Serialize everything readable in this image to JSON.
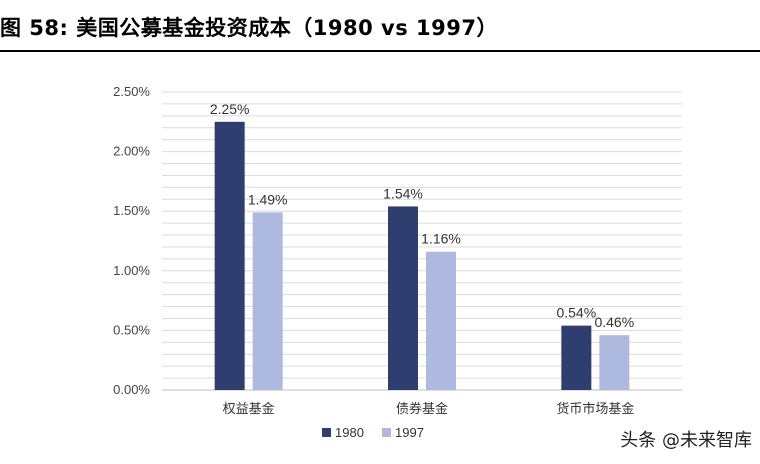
{
  "figure": {
    "title": "图 58:  美国公募基金投资成本（1980 vs 1997）"
  },
  "watermark": "头条 @未来智库",
  "chart_data": {
    "type": "bar",
    "categories": [
      "权益基金",
      "债券基金",
      "货币市场基金"
    ],
    "series": [
      {
        "name": "1980",
        "values": [
          2.25,
          1.54,
          0.54
        ],
        "labels": [
          "2.25%",
          "1.54%",
          "0.54%"
        ],
        "color": "#2e3e6e"
      },
      {
        "name": "1997",
        "values": [
          1.49,
          1.16,
          0.46
        ],
        "labels": [
          "1.49%",
          "1.16%",
          "0.46%"
        ],
        "color": "#adb9df"
      }
    ],
    "ylim": [
      0,
      2.5
    ],
    "yticks": [
      0,
      0.5,
      1.0,
      1.5,
      2.0,
      2.5
    ],
    "ytick_labels": [
      "0.00%",
      "0.50%",
      "1.00%",
      "1.50%",
      "2.00%",
      "2.50%"
    ],
    "grid": true,
    "legend_position": "bottom-left",
    "title": "",
    "xlabel": "",
    "ylabel": ""
  }
}
